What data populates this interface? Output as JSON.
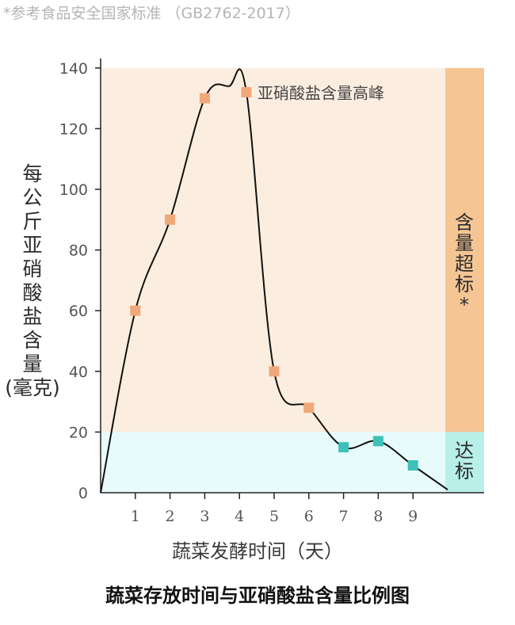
{
  "note": "*参考食品安全国家标准 （GB2762-2017）",
  "colors": {
    "exceed_zone": "#fbeee0",
    "ok_zone": "#e8fbfb",
    "exceed_band": "#f5c594",
    "ok_band": "#b8efe9",
    "marker_high": "#f0a77a",
    "marker_ok": "#3fc1b8",
    "line": "#111111"
  },
  "zone_labels": {
    "exceed": "含量超标*",
    "ok": "达标"
  },
  "chart_data": {
    "type": "line",
    "title": "蔬菜存放时间与亚硝酸盐含量比例图",
    "xlabel": "蔬菜发酵时间（天）",
    "ylabel": "每公斤亚硝酸盐含量(毫克)",
    "x_ticks": [
      "1",
      "2",
      "3",
      "4",
      "5",
      "6",
      "7",
      "8",
      "9"
    ],
    "y_ticks": [
      "0",
      "20",
      "40",
      "60",
      "80",
      "100",
      "120",
      "140"
    ],
    "ylim": [
      0,
      140
    ],
    "xlim": [
      0,
      10
    ],
    "threshold": 20,
    "points": [
      {
        "x": 1,
        "y": 60,
        "status": "exceed"
      },
      {
        "x": 2,
        "y": 90,
        "status": "exceed"
      },
      {
        "x": 3,
        "y": 130,
        "status": "exceed"
      },
      {
        "x": 4.2,
        "y": 132,
        "status": "exceed"
      },
      {
        "x": 5,
        "y": 40,
        "status": "exceed"
      },
      {
        "x": 6,
        "y": 28,
        "status": "exceed"
      },
      {
        "x": 7,
        "y": 15,
        "status": "ok"
      },
      {
        "x": 8,
        "y": 17,
        "status": "ok"
      },
      {
        "x": 9,
        "y": 9,
        "status": "ok"
      }
    ],
    "curve_start": {
      "x": 0,
      "y": 0
    },
    "curve_peak": {
      "x": 3.7,
      "y": 134
    },
    "curve_end": {
      "x": 10,
      "y": 1
    },
    "annotation": "亚硝酸盐含量高峰"
  }
}
